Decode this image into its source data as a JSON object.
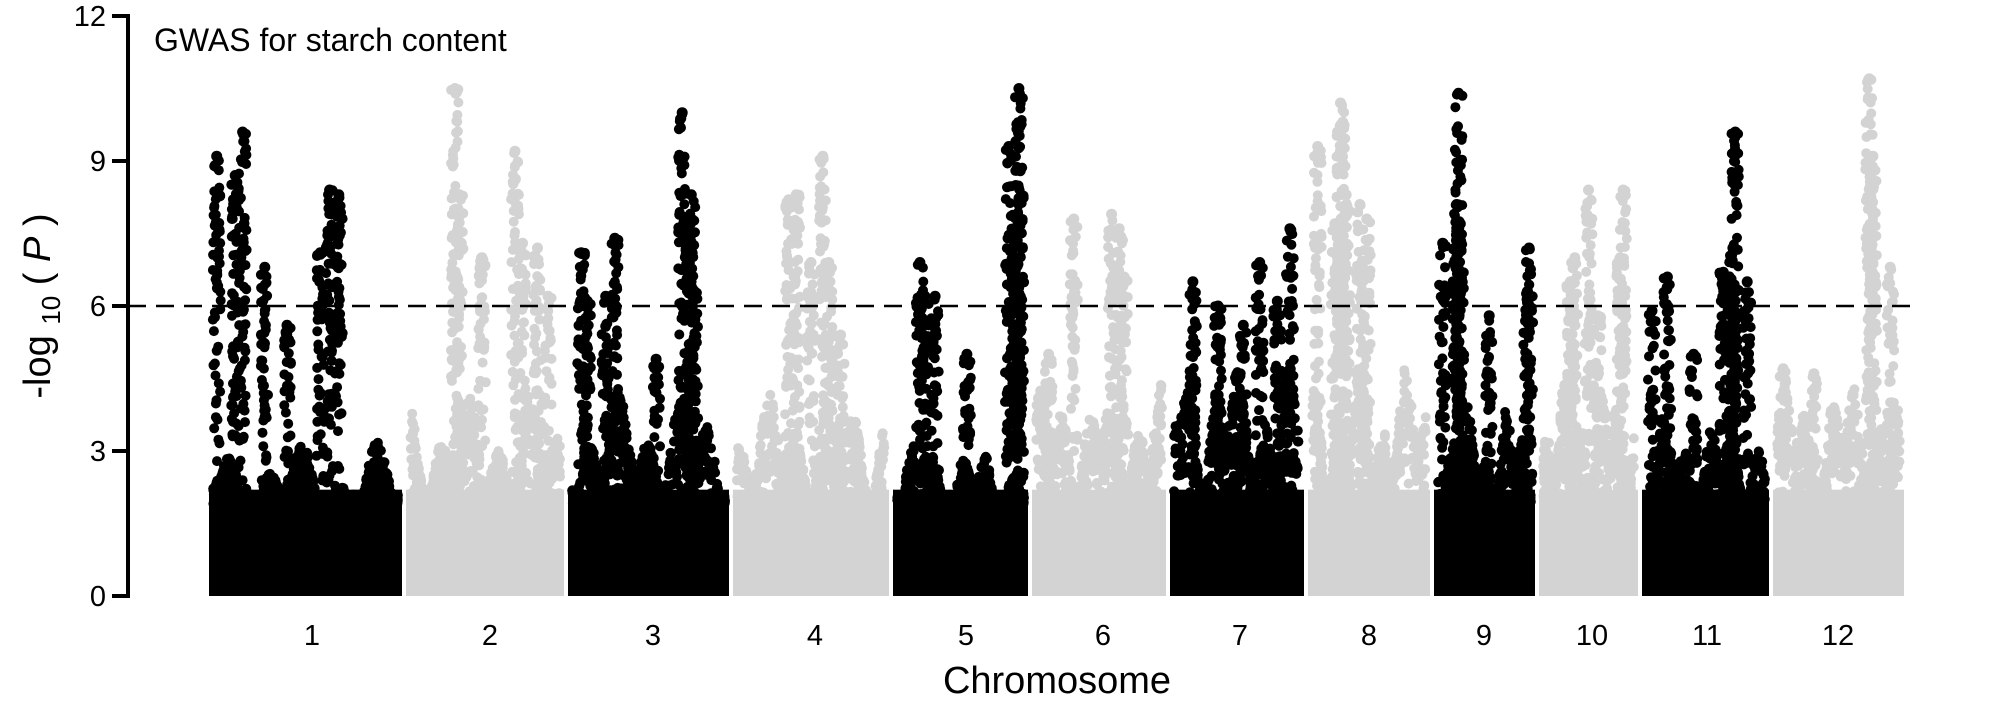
{
  "chart_data": {
    "type": "scatter",
    "subtype": "manhattan",
    "title": "GWAS for starch content",
    "xlabel": "Chromosome",
    "ylabel": {
      "prefix": "-log",
      "subscript": "10",
      "suffix_open": "(",
      "suffix_italic": "P",
      "suffix_close": ")"
    },
    "ylim": [
      0,
      12
    ],
    "yticks": [
      "0",
      "3",
      "6",
      "9",
      "12"
    ],
    "threshold": 6,
    "threshold_style": "dashed",
    "colors": {
      "odd": "#000000",
      "even": "#d3d3d3"
    },
    "chromosomes": [
      {
        "label": "1",
        "color": "#000000",
        "base_max": 3.2,
        "peaks": [
          [
            0.02,
            9.1
          ],
          [
            0.12,
            8.7
          ],
          [
            0.28,
            6.8
          ],
          [
            0.4,
            5.6
          ],
          [
            0.58,
            7.1
          ],
          [
            0.63,
            8.4
          ],
          [
            0.68,
            8.3
          ],
          [
            0.16,
            9.6
          ]
        ]
      },
      {
        "label": "2",
        "color": "#d3d3d3",
        "base_max": 4.2,
        "peaks": [
          [
            0.3,
            10.5
          ],
          [
            0.33,
            8.3
          ],
          [
            0.48,
            7.0
          ],
          [
            0.7,
            9.2
          ],
          [
            0.75,
            7.3
          ],
          [
            0.85,
            7.2
          ],
          [
            0.92,
            6.2
          ]
        ]
      },
      {
        "label": "3",
        "color": "#000000",
        "base_max": 4.3,
        "peaks": [
          [
            0.06,
            7.1
          ],
          [
            0.1,
            6.1
          ],
          [
            0.22,
            6.2
          ],
          [
            0.28,
            7.4
          ],
          [
            0.55,
            4.9
          ],
          [
            0.72,
            10.0
          ],
          [
            0.78,
            8.3
          ],
          [
            0.76,
            7.8
          ],
          [
            0.8,
            6.3
          ]
        ]
      },
      {
        "label": "4",
        "color": "#d3d3d3",
        "base_max": 4.3,
        "peaks": [
          [
            0.35,
            8.2
          ],
          [
            0.4,
            8.3
          ],
          [
            0.5,
            6.9
          ],
          [
            0.58,
            9.1
          ],
          [
            0.62,
            6.9
          ],
          [
            0.7,
            5.4
          ]
        ]
      },
      {
        "label": "5",
        "color": "#000000",
        "base_max": 3.2,
        "peaks": [
          [
            0.18,
            6.9
          ],
          [
            0.22,
            6.2
          ],
          [
            0.3,
            6.2
          ],
          [
            0.55,
            5.0
          ],
          [
            0.88,
            9.3
          ],
          [
            0.92,
            7.5
          ],
          [
            0.96,
            10.5
          ],
          [
            0.97,
            8.8
          ],
          [
            0.95,
            6.2
          ]
        ]
      },
      {
        "label": "6",
        "color": "#d3d3d3",
        "base_max": 4.5,
        "peaks": [
          [
            0.1,
            5.0
          ],
          [
            0.3,
            7.8
          ],
          [
            0.6,
            7.9
          ],
          [
            0.66,
            7.6
          ],
          [
            0.7,
            6.6
          ]
        ]
      },
      {
        "label": "7",
        "color": "#000000",
        "base_max": 4.9,
        "peaks": [
          [
            0.15,
            6.5
          ],
          [
            0.35,
            6.0
          ],
          [
            0.55,
            5.6
          ],
          [
            0.68,
            6.9
          ],
          [
            0.82,
            6.1
          ],
          [
            0.92,
            7.6
          ]
        ]
      },
      {
        "label": "8",
        "color": "#d3d3d3",
        "base_max": 4.8,
        "peaks": [
          [
            0.05,
            9.3
          ],
          [
            0.2,
            7.7
          ],
          [
            0.25,
            10.2
          ],
          [
            0.27,
            9.8
          ],
          [
            0.3,
            8.3
          ],
          [
            0.42,
            8.1
          ],
          [
            0.48,
            7.8
          ]
        ]
      },
      {
        "label": "9",
        "color": "#000000",
        "base_max": 4.0,
        "peaks": [
          [
            0.05,
            7.3
          ],
          [
            0.2,
            7.0
          ],
          [
            0.22,
            10.4
          ],
          [
            0.2,
            8.1
          ],
          [
            0.24,
            7.7
          ],
          [
            0.55,
            5.8
          ],
          [
            0.98,
            7.2
          ],
          [
            0.96,
            6.3
          ]
        ]
      },
      {
        "label": "10",
        "color": "#d3d3d3",
        "base_max": 4.6,
        "peaks": [
          [
            0.3,
            6.5
          ],
          [
            0.35,
            7.0
          ],
          [
            0.5,
            8.4
          ],
          [
            0.6,
            5.8
          ],
          [
            0.88,
            8.4
          ],
          [
            0.85,
            7.0
          ]
        ]
      },
      {
        "label": "11",
        "color": "#000000",
        "base_max": 3.8,
        "peaks": [
          [
            0.05,
            5.9
          ],
          [
            0.18,
            6.6
          ],
          [
            0.4,
            5.0
          ],
          [
            0.65,
            6.7
          ],
          [
            0.75,
            9.6
          ],
          [
            0.73,
            7.2
          ],
          [
            0.72,
            6.4
          ],
          [
            0.85,
            6.5
          ]
        ]
      },
      {
        "label": "12",
        "color": "#d3d3d3",
        "base_max": 4.6,
        "peaks": [
          [
            0.05,
            4.7
          ],
          [
            0.3,
            4.6
          ],
          [
            0.75,
            10.7
          ],
          [
            0.78,
            9.1
          ],
          [
            0.76,
            7.3
          ],
          [
            0.92,
            6.8
          ]
        ]
      }
    ]
  }
}
